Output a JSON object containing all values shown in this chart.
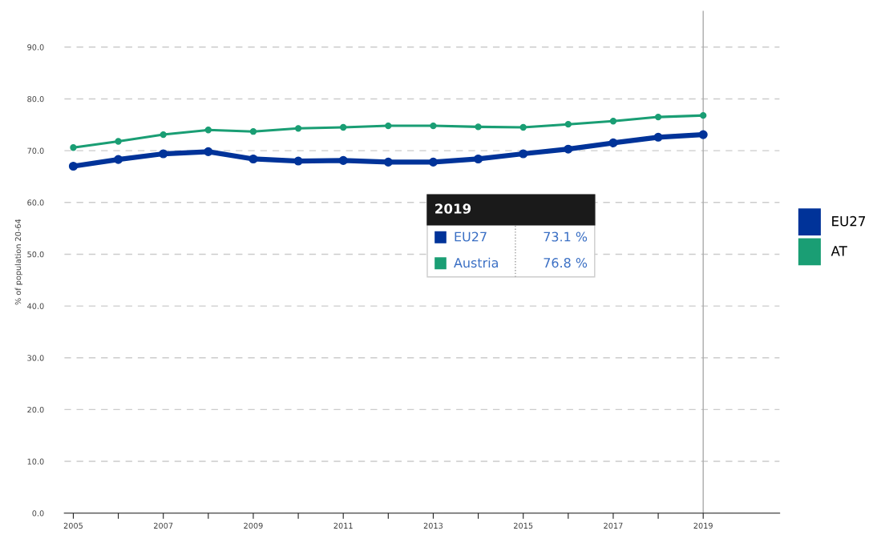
{
  "chart_data": {
    "type": "line",
    "ylabel": "% of population 20-64",
    "x": [
      2005,
      2006,
      2007,
      2008,
      2009,
      2010,
      2011,
      2012,
      2013,
      2014,
      2015,
      2016,
      2017,
      2018,
      2019
    ],
    "series": [
      {
        "name": "EU27",
        "color": "#003399",
        "values": [
          67.0,
          68.3,
          69.4,
          69.8,
          68.4,
          68.0,
          68.1,
          67.8,
          67.8,
          68.4,
          69.4,
          70.3,
          71.5,
          72.6,
          73.1
        ]
      },
      {
        "name": "AT",
        "color": "#1a9e74",
        "values": [
          70.6,
          71.8,
          73.1,
          74.0,
          73.7,
          74.3,
          74.5,
          74.8,
          74.8,
          74.6,
          74.5,
          75.1,
          75.7,
          76.5,
          76.8
        ]
      }
    ],
    "xlim": [
      2004.8,
      2020.7
    ],
    "xticks": [
      2005,
      {
        "value": 2006,
        "label": null
      },
      2007,
      {
        "value": 2008,
        "label": null
      },
      2009,
      {
        "value": 2010,
        "label": null
      },
      2011,
      {
        "value": 2012,
        "label": null
      },
      2013,
      {
        "value": 2014,
        "label": null
      },
      2015,
      {
        "value": 2016,
        "label": null
      },
      2017,
      {
        "value": 2018,
        "label": null
      },
      2019
    ],
    "ylim": [
      0,
      97
    ],
    "yticks": [
      {
        "value": 0,
        "label": "0.0"
      },
      {
        "value": 10,
        "label": "10.0"
      },
      {
        "value": 20,
        "label": "20.0"
      },
      {
        "value": 30,
        "label": "30.0"
      },
      {
        "value": 40,
        "label": "40.0"
      },
      {
        "value": 50,
        "label": "50.0"
      },
      {
        "value": 60,
        "label": "60.0"
      },
      {
        "value": 70,
        "label": "70.0"
      },
      {
        "value": 80,
        "label": "80.0"
      },
      {
        "value": 90,
        "label": "90.0"
      }
    ],
    "ref_lines": [
      {
        "axis": "x",
        "value": 2019,
        "color": "#aaaaaa"
      }
    ],
    "annotations": [
      "2019",
      "EU27",
      "73.1 %",
      "Austria",
      "76.8 %"
    ],
    "grid": "y",
    "legend": "right",
    "marker": "circle",
    "line_style": "solid"
  }
}
